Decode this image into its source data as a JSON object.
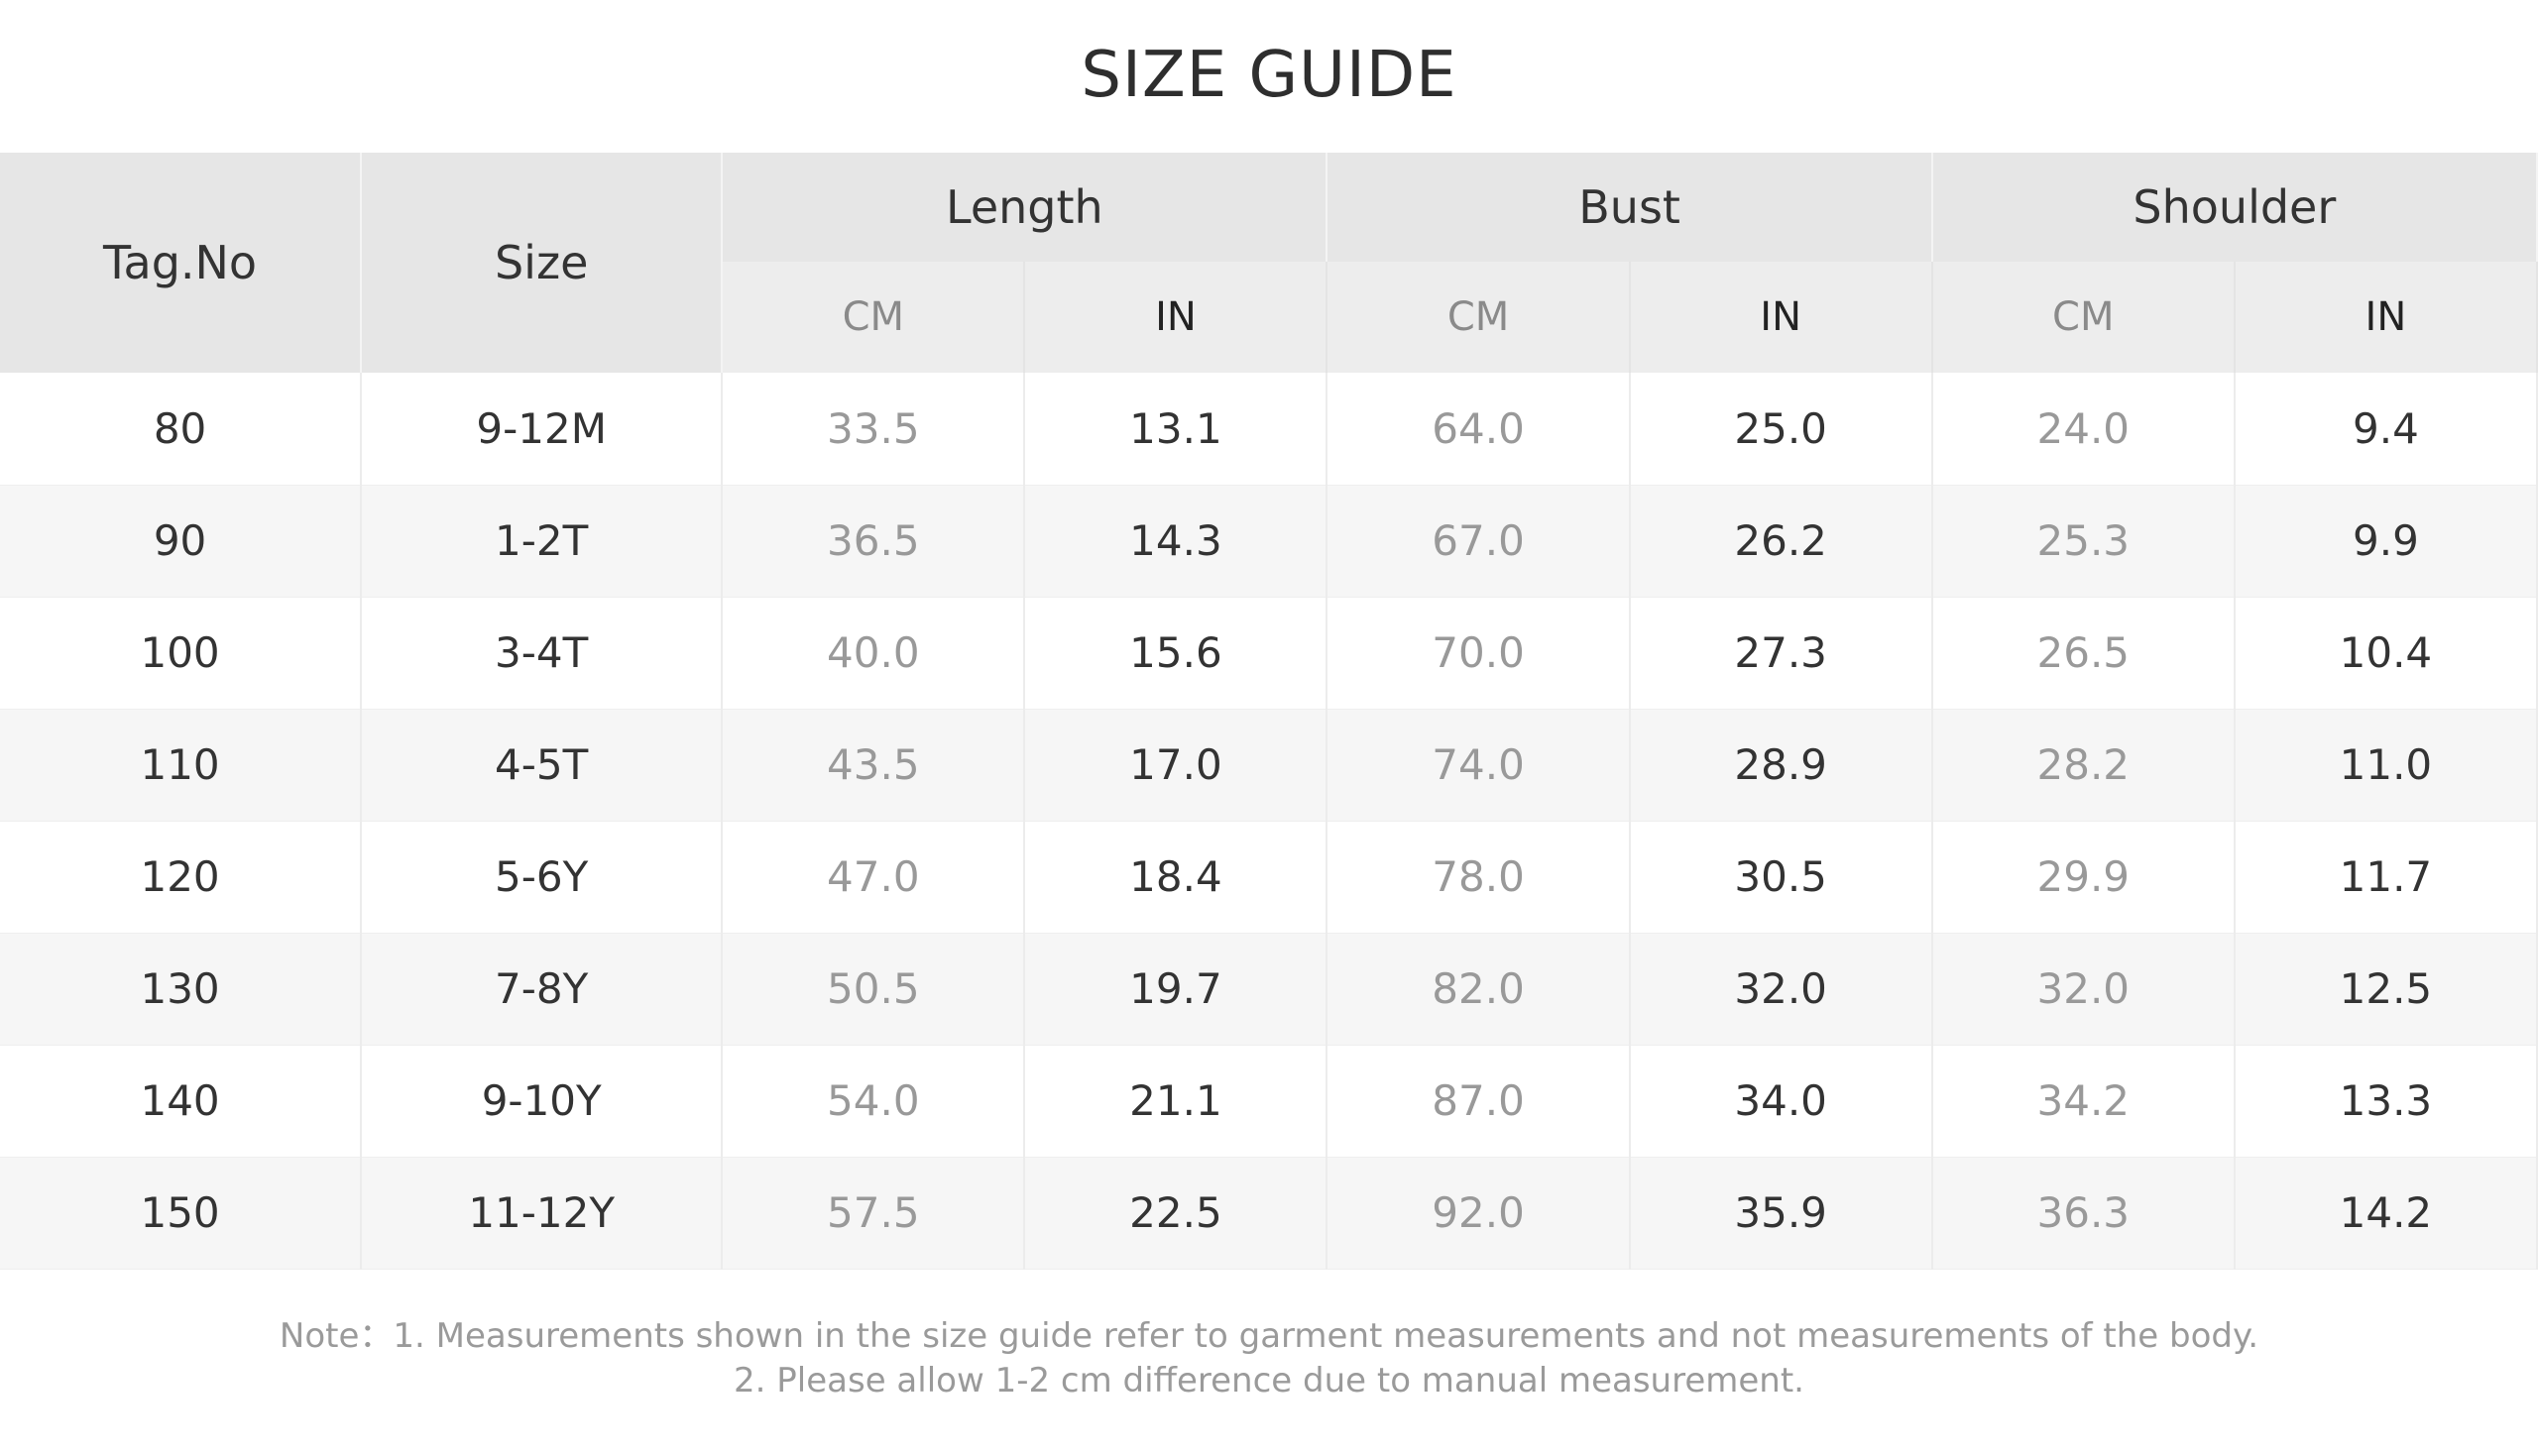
{
  "title": "SIZE GUIDE",
  "headers": {
    "tag_no": "Tag.No",
    "size": "Size",
    "groups": [
      "Length",
      "Bust",
      "Shoulder"
    ],
    "units": [
      "CM",
      "IN",
      "CM",
      "IN",
      "CM",
      "IN"
    ]
  },
  "rows": [
    [
      "80",
      "9-12M",
      "33.5",
      "13.1",
      "64.0",
      "25.0",
      "24.0",
      "9.4"
    ],
    [
      "90",
      "1-2T",
      "36.5",
      "14.3",
      "67.0",
      "26.2",
      "25.3",
      "9.9"
    ],
    [
      "100",
      "3-4T",
      "40.0",
      "15.6",
      "70.0",
      "27.3",
      "26.5",
      "10.4"
    ],
    [
      "110",
      "4-5T",
      "43.5",
      "17.0",
      "74.0",
      "28.9",
      "28.2",
      "11.0"
    ],
    [
      "120",
      "5-6Y",
      "47.0",
      "18.4",
      "78.0",
      "30.5",
      "29.9",
      "11.7"
    ],
    [
      "130",
      "7-8Y",
      "50.5",
      "19.7",
      "82.0",
      "32.0",
      "32.0",
      "12.5"
    ],
    [
      "140",
      "9-10Y",
      "54.0",
      "21.1",
      "87.0",
      "34.0",
      "34.2",
      "13.3"
    ],
    [
      "150",
      "11-12Y",
      "57.5",
      "22.5",
      "92.0",
      "35.9",
      "36.3",
      "14.2"
    ]
  ],
  "note": {
    "line1": "Note：1. Measurements shown in the size guide refer to garment measurements and not measurements of the body.",
    "line2": "2. Please allow 1-2 cm difference due to manual measurement."
  }
}
